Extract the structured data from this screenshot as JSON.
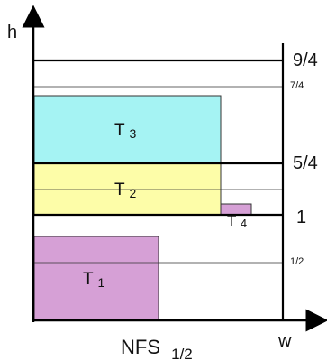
{
  "axes": {
    "y_label": "h",
    "x_label": "w",
    "caption_main": "NFS",
    "caption_sub": "1/2"
  },
  "levels": [
    {
      "value": 2.25,
      "label": "9/4",
      "emphasis": "bold"
    },
    {
      "value": 1.75,
      "label": "7/4",
      "emphasis": "thin"
    },
    {
      "value": 1.25,
      "label": "5/4",
      "emphasis": "bold"
    },
    {
      "value": 1.0,
      "label": "1",
      "emphasis": "bold"
    },
    {
      "value": 0.5,
      "label": "1/2",
      "emphasis": "thin"
    }
  ],
  "rectangles": [
    {
      "label": "T",
      "sub": "1",
      "color": "#d6a0d6"
    },
    {
      "label": "T",
      "sub": "2",
      "color": "#fdfda8"
    },
    {
      "label": "T",
      "sub": "3",
      "color": "#a5f3f3"
    },
    {
      "label": "T",
      "sub": "4",
      "color": "#d6a0d6"
    }
  ]
}
